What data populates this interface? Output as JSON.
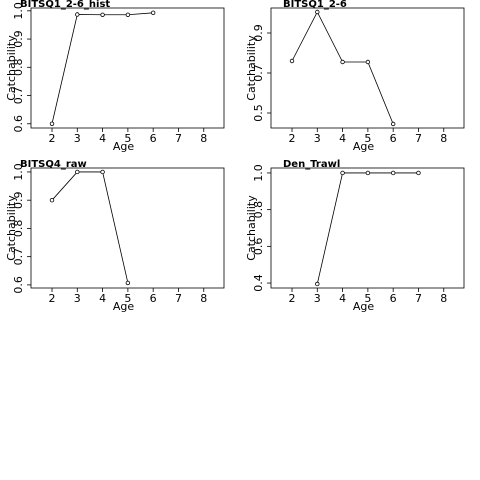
{
  "chart_data": [
    {
      "type": "line",
      "title": "BITSQ1_2-6_hist",
      "xlabel": "Age",
      "ylabel": "Catchability",
      "x": [
        2,
        3,
        4,
        5,
        6
      ],
      "series": [
        {
          "color": "#000000",
          "values": [
            0.6,
            0.987,
            0.986,
            0.986,
            0.993
          ]
        }
      ],
      "xlim": [
        1.17,
        8.8
      ],
      "ylim": [
        0.585,
        1.01
      ],
      "xticks": [
        2,
        3,
        4,
        5,
        6,
        7,
        8
      ],
      "yticks": [
        0.6,
        0.7,
        0.8,
        0.9,
        {
          "value": 1,
          "label": "1.0"
        }
      ]
    },
    {
      "type": "line",
      "title": "BITSQ1_2-6",
      "xlabel": "Age",
      "ylabel": "Catchability",
      "x": [
        2,
        3,
        4,
        5,
        6
      ],
      "series": [
        {
          "color": "#000000",
          "values": [
            0.76,
            1.005,
            0.755,
            0.755,
            0.445
          ]
        }
      ],
      "xlim": [
        1.17,
        8.8
      ],
      "ylim": [
        0.425,
        1.025
      ],
      "xticks": [
        2,
        3,
        4,
        5,
        6,
        7,
        8
      ],
      "yticks": [
        0.5,
        0.7,
        0.9
      ]
    },
    {
      "type": "line",
      "title": "BITSQ4_raw",
      "xlabel": "Age",
      "ylabel": "Catchability",
      "x": [
        2,
        3,
        4,
        5
      ],
      "series": [
        {
          "color": "#000000",
          "values": [
            0.9,
            1,
            1,
            0.607
          ]
        }
      ],
      "xlim": [
        1.17,
        8.8
      ],
      "ylim": [
        0.589,
        1.014
      ],
      "xticks": [
        2,
        3,
        4,
        5,
        6,
        7,
        8
      ],
      "yticks": [
        0.6,
        0.7,
        0.8,
        0.9,
        {
          "value": 1,
          "label": "1.0"
        }
      ]
    },
    {
      "type": "line",
      "title": "Den_Trawl",
      "xlabel": "Age",
      "ylabel": "Catchability",
      "x": [
        3,
        4,
        5,
        6,
        7
      ],
      "series": [
        {
          "color": "#000000",
          "values": [
            0.395,
            1,
            1,
            1,
            1
          ]
        }
      ],
      "xlim": [
        1.17,
        8.8
      ],
      "ylim": [
        0.373,
        1.027
      ],
      "xticks": [
        2,
        3,
        4,
        5,
        6,
        7,
        8
      ],
      "yticks": [
        0.4,
        0.6,
        0.8,
        {
          "value": 1,
          "label": "1.0"
        }
      ]
    }
  ]
}
